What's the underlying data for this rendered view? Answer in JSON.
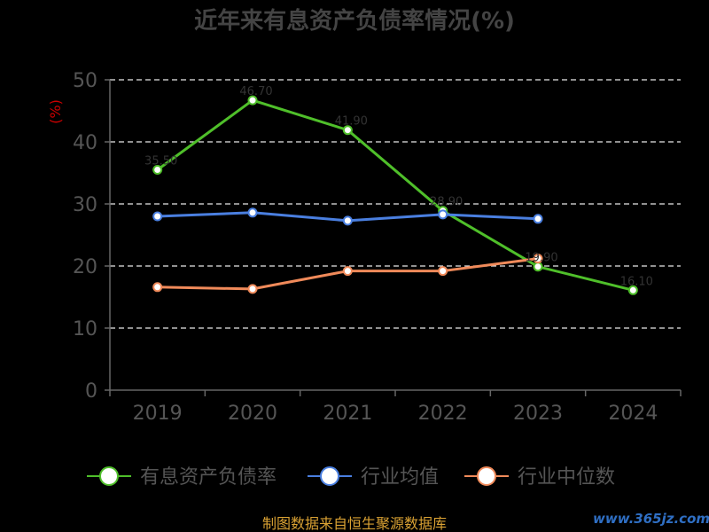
{
  "chart_data": {
    "type": "line",
    "title": "近年来有息资产负债率情况(%)",
    "ylabel": "(%)",
    "categories": [
      "2019",
      "2020",
      "2021",
      "2022",
      "2023",
      "2024"
    ],
    "ylim": [
      0,
      50
    ],
    "yticks": [
      0,
      10,
      20,
      30,
      40,
      50
    ],
    "grid": true,
    "legend_position": "bottom",
    "series": [
      {
        "name": "有息资产负债率",
        "color": "#4fbf2a",
        "values": [
          35.5,
          46.7,
          41.9,
          28.9,
          19.9,
          16.1
        ]
      },
      {
        "name": "行业均值",
        "color": "#4a7fe0",
        "values": [
          28.0,
          28.6,
          27.3,
          28.3,
          27.6,
          null
        ]
      },
      {
        "name": "行业中位数",
        "color": "#f08a5a",
        "values": [
          16.6,
          16.3,
          19.2,
          19.2,
          21.2,
          null
        ]
      }
    ]
  },
  "footer": {
    "source": "制图数据来自恒生聚源数据库",
    "watermark": "www.365jz.com"
  }
}
